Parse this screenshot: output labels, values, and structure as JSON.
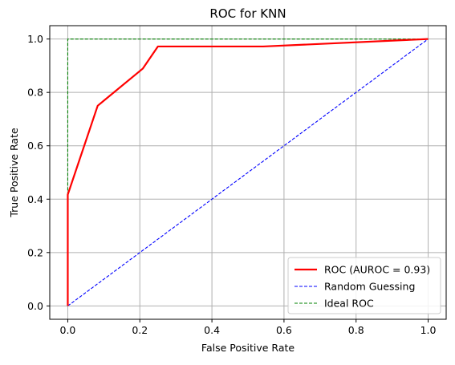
{
  "chart_data": {
    "type": "line",
    "title": "ROC for KNN",
    "xlabel": "False Positive Rate",
    "ylabel": "True Positive Rate",
    "xlim": [
      -0.05,
      1.05
    ],
    "ylim": [
      -0.05,
      1.05
    ],
    "xticks": [
      "0.0",
      "0.2",
      "0.4",
      "0.6",
      "0.8",
      "1.0"
    ],
    "yticks": [
      "0.0",
      "0.2",
      "0.4",
      "0.6",
      "0.8",
      "1.0"
    ],
    "grid": true,
    "legend_position": "bottom-right",
    "series": [
      {
        "name": "ROC (AUROC = 0.93)",
        "color": "#ff0000",
        "style": "solid",
        "x": [
          0.0,
          0.0,
          0.0,
          0.083,
          0.208,
          0.25,
          0.542,
          1.0
        ],
        "y": [
          0.0,
          0.389,
          0.417,
          0.75,
          0.889,
          0.972,
          0.972,
          1.0
        ]
      },
      {
        "name": "Random Guessing",
        "color": "#0000ff",
        "style": "dashed",
        "x": [
          0.0,
          1.0
        ],
        "y": [
          0.0,
          1.0
        ]
      },
      {
        "name": "Ideal ROC",
        "color": "#008000",
        "style": "dashed",
        "x": [
          0.0,
          0.0,
          1.0
        ],
        "y": [
          0.0,
          1.0,
          1.0
        ]
      }
    ]
  }
}
